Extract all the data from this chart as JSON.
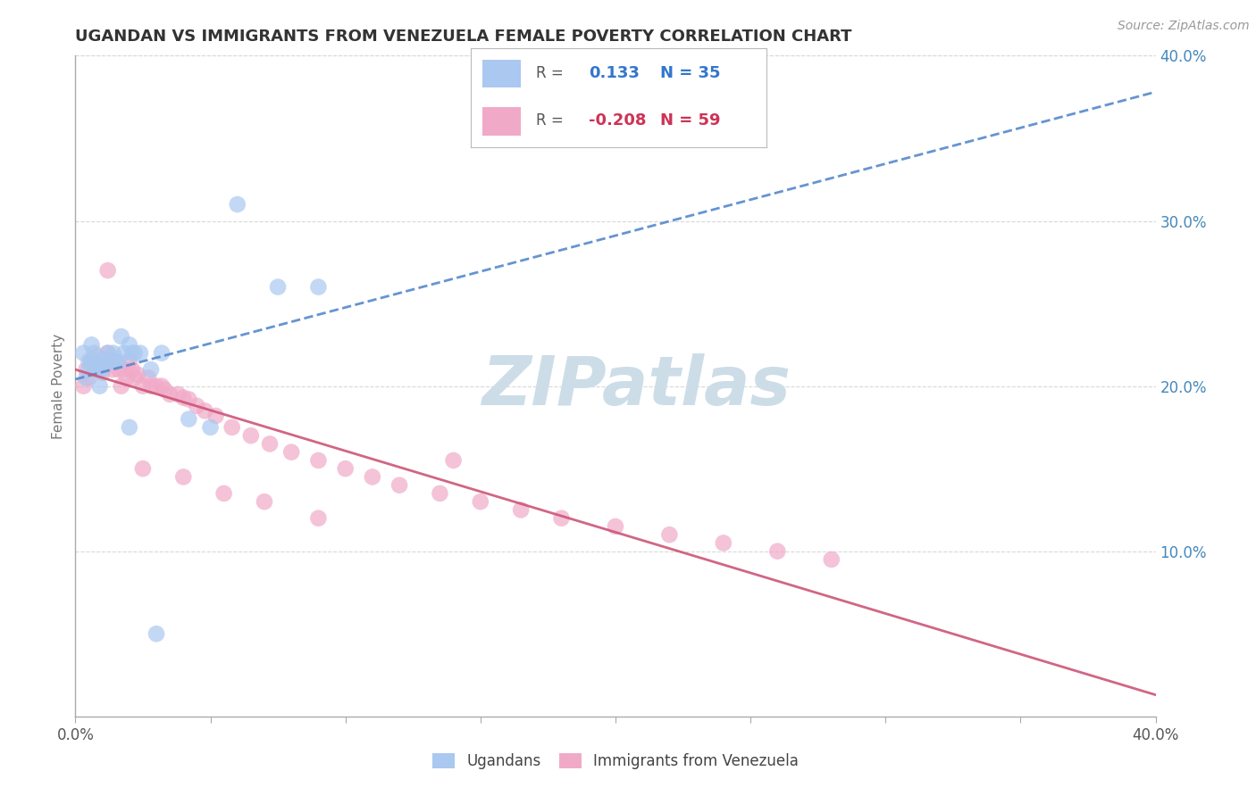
{
  "title": "UGANDAN VS IMMIGRANTS FROM VENEZUELA FEMALE POVERTY CORRELATION CHART",
  "source_text": "Source: ZipAtlas.com",
  "ylabel": "Female Poverty",
  "xlim": [
    0.0,
    0.4
  ],
  "ylim": [
    0.0,
    0.4
  ],
  "xticks": [
    0.0,
    0.05,
    0.1,
    0.15,
    0.2,
    0.25,
    0.3,
    0.35,
    0.4
  ],
  "yticks_right": [
    0.1,
    0.2,
    0.3,
    0.4
  ],
  "ytick_labels_right": [
    "10.0%",
    "20.0%",
    "30.0%",
    "40.0%"
  ],
  "watermark": "ZIPatlas",
  "watermark_color": "#ccdde8",
  "ugandan_R": 0.133,
  "ugandan_N": 35,
  "venezuela_R": -0.208,
  "venezuela_N": 59,
  "ugandan_color": "#aac8f0",
  "venezuela_color": "#f0aac8",
  "ugandan_line_color": "#5588cc",
  "venezuela_line_color": "#cc5577",
  "background_color": "#ffffff",
  "grid_color": "#d8d8d8",
  "title_color": "#333333",
  "axis_label_color": "#777777",
  "right_tick_color": "#4488bb",
  "legend_R_color_ugandan": "#3377cc",
  "legend_R_color_venezuela": "#cc3355",
  "ugandan_x": [
    0.003,
    0.004,
    0.005,
    0.005,
    0.006,
    0.006,
    0.007,
    0.007,
    0.008,
    0.008,
    0.009,
    0.009,
    0.01,
    0.01,
    0.011,
    0.012,
    0.013,
    0.014,
    0.015,
    0.016,
    0.017,
    0.018,
    0.02,
    0.021,
    0.022,
    0.024,
    0.028,
    0.032,
    0.042,
    0.05,
    0.06,
    0.075,
    0.09,
    0.02,
    0.03
  ],
  "ugandan_y": [
    0.22,
    0.205,
    0.215,
    0.21,
    0.215,
    0.225,
    0.21,
    0.22,
    0.215,
    0.21,
    0.215,
    0.2,
    0.215,
    0.21,
    0.215,
    0.22,
    0.215,
    0.22,
    0.215,
    0.215,
    0.23,
    0.22,
    0.225,
    0.22,
    0.22,
    0.22,
    0.21,
    0.22,
    0.18,
    0.175,
    0.31,
    0.26,
    0.26,
    0.175,
    0.05
  ],
  "venezuela_x": [
    0.003,
    0.004,
    0.005,
    0.006,
    0.007,
    0.008,
    0.008,
    0.009,
    0.01,
    0.011,
    0.012,
    0.013,
    0.014,
    0.015,
    0.016,
    0.017,
    0.018,
    0.019,
    0.02,
    0.021,
    0.022,
    0.023,
    0.025,
    0.027,
    0.028,
    0.03,
    0.032,
    0.033,
    0.035,
    0.038,
    0.04,
    0.042,
    0.045,
    0.048,
    0.052,
    0.058,
    0.065,
    0.072,
    0.08,
    0.09,
    0.1,
    0.11,
    0.12,
    0.135,
    0.15,
    0.165,
    0.18,
    0.2,
    0.22,
    0.24,
    0.26,
    0.28,
    0.012,
    0.025,
    0.04,
    0.055,
    0.07,
    0.09,
    0.14
  ],
  "venezuela_y": [
    0.2,
    0.21,
    0.205,
    0.215,
    0.215,
    0.218,
    0.21,
    0.21,
    0.208,
    0.215,
    0.22,
    0.215,
    0.21,
    0.215,
    0.21,
    0.2,
    0.21,
    0.205,
    0.215,
    0.21,
    0.205,
    0.207,
    0.2,
    0.205,
    0.2,
    0.2,
    0.2,
    0.198,
    0.195,
    0.195,
    0.193,
    0.192,
    0.188,
    0.185,
    0.182,
    0.175,
    0.17,
    0.165,
    0.16,
    0.155,
    0.15,
    0.145,
    0.14,
    0.135,
    0.13,
    0.125,
    0.12,
    0.115,
    0.11,
    0.105,
    0.1,
    0.095,
    0.27,
    0.15,
    0.145,
    0.135,
    0.13,
    0.12,
    0.155
  ],
  "figsize": [
    14.06,
    8.92
  ],
  "dpi": 100
}
